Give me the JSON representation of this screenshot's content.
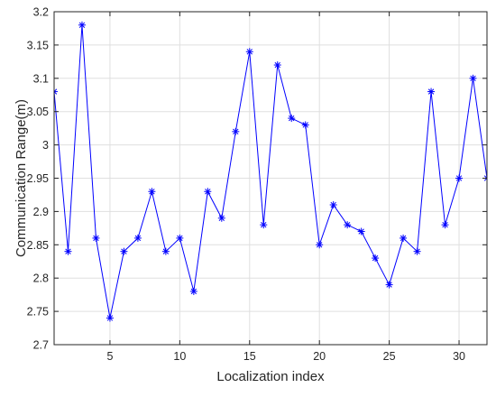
{
  "chart_data": {
    "type": "line",
    "xlabel": "Localization index",
    "ylabel": "Communication Range(m)",
    "xlim": [
      1,
      32
    ],
    "ylim": [
      2.7,
      3.2
    ],
    "xticks": [
      5,
      10,
      15,
      20,
      25,
      30
    ],
    "yticks": [
      2.7,
      2.75,
      2.8,
      2.85,
      2.9,
      2.95,
      3,
      3.05,
      3.1,
      3.15,
      3.2
    ],
    "xtick_labels": [
      "5",
      "10",
      "15",
      "20",
      "25",
      "30"
    ],
    "ytick_labels": [
      "2.7",
      "2.75",
      "2.8",
      "2.85",
      "2.9",
      "2.95",
      "3",
      "3.05",
      "3.1",
      "3.15",
      "3.2"
    ],
    "grid": true,
    "marker": "asterisk",
    "color": "#0000ff",
    "series": [
      {
        "x": [
          1,
          2,
          3,
          4,
          5,
          6,
          7,
          8,
          9,
          10,
          11,
          12,
          13,
          14,
          15,
          16,
          17,
          18,
          19,
          20,
          21,
          22,
          23,
          24,
          25,
          26,
          27,
          28,
          29,
          30,
          31,
          32
        ],
        "values": [
          3.08,
          2.84,
          3.18,
          2.86,
          2.74,
          2.84,
          2.86,
          2.93,
          2.84,
          2.86,
          2.78,
          2.93,
          2.89,
          3.02,
          3.14,
          2.88,
          3.12,
          3.04,
          3.03,
          2.85,
          2.91,
          2.88,
          2.87,
          2.83,
          2.79,
          2.86,
          2.84,
          3.08,
          2.88,
          2.95,
          3.1,
          2.95
        ]
      }
    ]
  }
}
